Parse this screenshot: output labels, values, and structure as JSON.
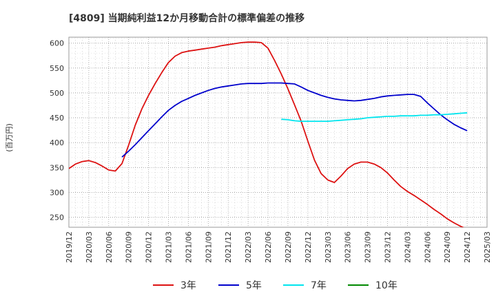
{
  "chart_data": {
    "type": "line",
    "title": "[4809]  当期純利益12か月移動合計の標準偏差の推移",
    "ylabel": "(百万円)",
    "xlabel": "",
    "ylim": [
      230,
      612
    ],
    "yticks": [
      250,
      300,
      350,
      400,
      450,
      500,
      550,
      600
    ],
    "x_tick_labels": [
      "2019/12",
      "2020/03",
      "2020/06",
      "2020/09",
      "2020/12",
      "2021/03",
      "2021/06",
      "2021/09",
      "2021/12",
      "2022/03",
      "2022/06",
      "2022/09",
      "2022/12",
      "2023/03",
      "2023/06",
      "2023/09",
      "2023/12",
      "2024/03",
      "2024/06",
      "2024/09",
      "2024/12",
      "2025/03"
    ],
    "x_range_months": [
      0,
      63
    ],
    "grid": true,
    "legend": {
      "position": "bottom"
    },
    "series": [
      {
        "name": "3年",
        "color": "#dd1111",
        "x_months": [
          0,
          1,
          2,
          3,
          4,
          5,
          6,
          7,
          8,
          9,
          10,
          11,
          12,
          13,
          14,
          15,
          16,
          17,
          18,
          19,
          20,
          21,
          22,
          23,
          24,
          25,
          26,
          27,
          28,
          29,
          30,
          31,
          32,
          33,
          34,
          35,
          36,
          37,
          38,
          39,
          40,
          41,
          42,
          43,
          44,
          45,
          46,
          47,
          48,
          49,
          50,
          51,
          52,
          53,
          54,
          55,
          56,
          57,
          58,
          59,
          60
        ],
        "values": [
          348,
          357,
          362,
          364,
          360,
          353,
          345,
          343,
          358,
          395,
          435,
          468,
          495,
          519,
          541,
          561,
          574,
          581,
          584,
          586,
          588,
          590,
          592,
          595,
          597,
          599,
          601,
          602,
          602,
          601,
          590,
          565,
          538,
          508,
          476,
          443,
          403,
          365,
          338,
          325,
          320,
          333,
          348,
          357,
          361,
          361,
          357,
          350,
          339,
          325,
          312,
          302,
          294,
          285,
          276,
          266,
          257,
          247,
          239,
          232,
          226
        ]
      },
      {
        "name": "5年",
        "color": "#0000cc",
        "x_months": [
          8,
          9,
          10,
          11,
          12,
          13,
          14,
          15,
          16,
          17,
          18,
          19,
          20,
          21,
          22,
          23,
          24,
          25,
          26,
          27,
          28,
          29,
          30,
          31,
          32,
          33,
          34,
          35,
          36,
          37,
          38,
          39,
          40,
          41,
          42,
          43,
          44,
          45,
          46,
          47,
          48,
          49,
          50,
          51,
          52,
          53,
          54,
          55,
          56,
          57,
          58,
          59,
          60
        ],
        "values": [
          371,
          383,
          396,
          410,
          424,
          438,
          452,
          465,
          475,
          483,
          489,
          495,
          500,
          505,
          509,
          512,
          514,
          516,
          518,
          519,
          519,
          519,
          520,
          520,
          520,
          519,
          518,
          512,
          505,
          500,
          495,
          491,
          488,
          486,
          485,
          484,
          485,
          487,
          489,
          492,
          494,
          495,
          496,
          497,
          497,
          493,
          480,
          468,
          456,
          446,
          437,
          430,
          424
        ]
      },
      {
        "name": "7年",
        "color": "#00e5ee",
        "x_months": [
          32,
          33,
          34,
          35,
          36,
          37,
          38,
          39,
          40,
          41,
          42,
          43,
          44,
          45,
          46,
          47,
          48,
          49,
          50,
          51,
          52,
          53,
          54,
          55,
          56,
          57,
          58,
          59,
          60
        ],
        "values": [
          447,
          446,
          444,
          443,
          443,
          443,
          443,
          443,
          444,
          445,
          446,
          447,
          448,
          450,
          451,
          452,
          453,
          453,
          454,
          454,
          454,
          455,
          455,
          456,
          456,
          457,
          458,
          459,
          460
        ]
      },
      {
        "name": "10年",
        "color": "#008800",
        "x_months": [],
        "values": []
      }
    ]
  }
}
